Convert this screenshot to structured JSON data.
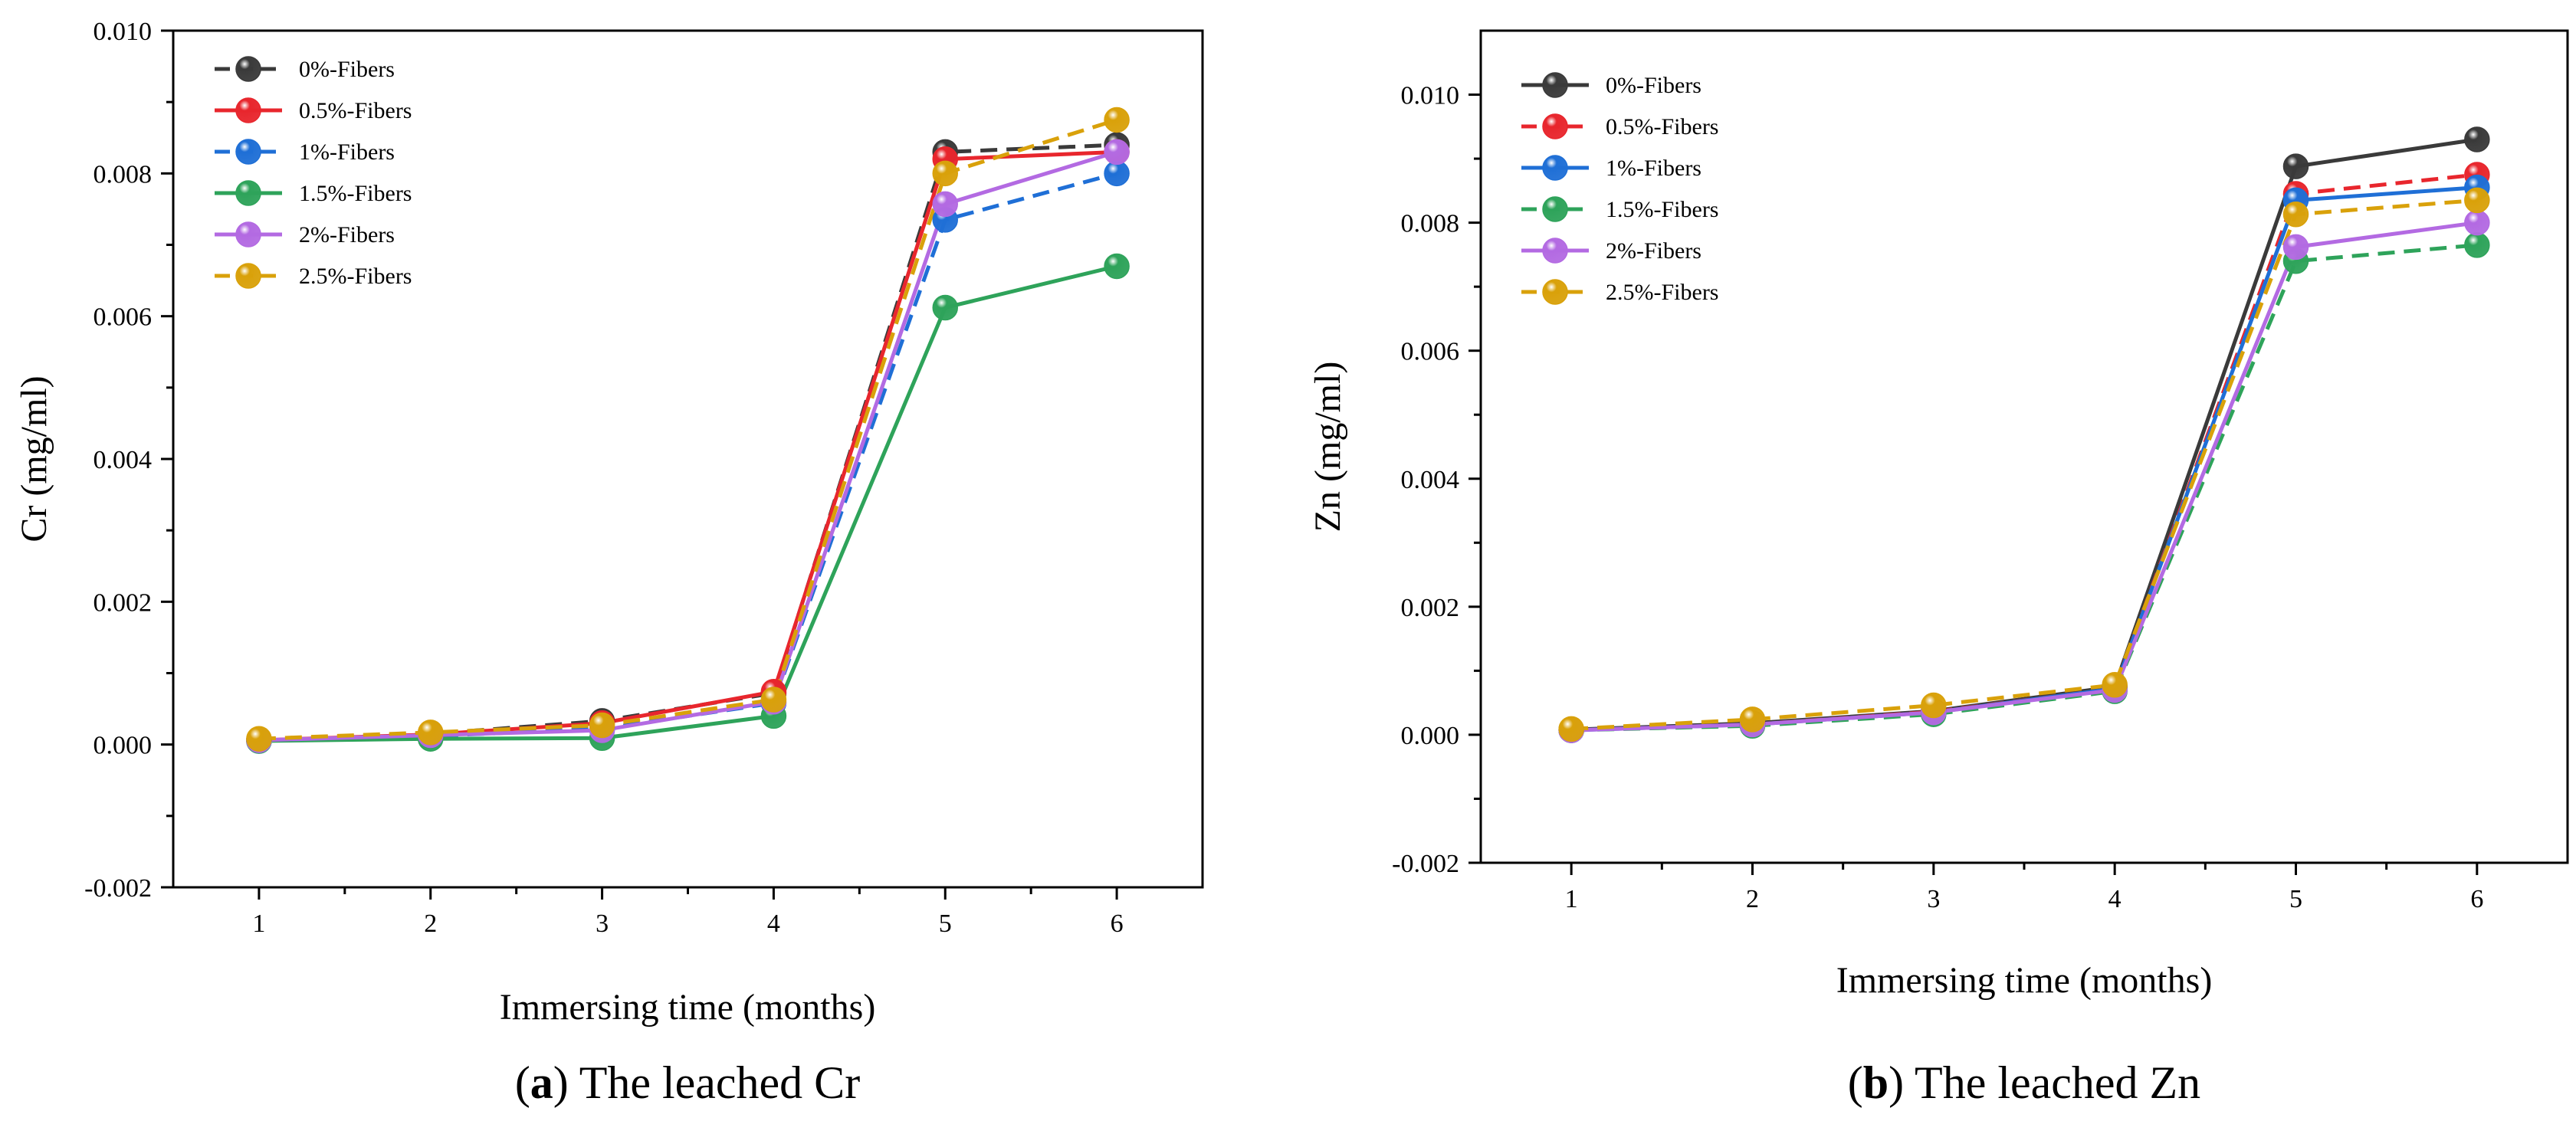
{
  "figure": {
    "panels": [
      {
        "caption_label": "a",
        "caption_text": " The leached Cr"
      },
      {
        "caption_label": "b",
        "caption_text": " The leached Zn"
      }
    ]
  },
  "chart_data": [
    {
      "type": "line",
      "title": "",
      "xlabel": "Immersing time (months)",
      "ylabel": "Cr (mg/ml)",
      "x": [
        1,
        2,
        3,
        4,
        5,
        6
      ],
      "xlim": [
        0.5,
        6.5
      ],
      "ylim": [
        -0.002,
        0.01
      ],
      "xticks": [
        "1",
        "2",
        "3",
        "4",
        "5",
        "6"
      ],
      "yticks": [
        "-0.002",
        "0.000",
        "0.002",
        "0.004",
        "0.006",
        "0.008",
        "0.010"
      ],
      "legend_position": "top-left",
      "series": [
        {
          "name": "0%-Fibers",
          "color": "#3a3a3a",
          "dash": "dashed",
          "values": [
            6e-05,
            0.00015,
            0.00033,
            0.00072,
            0.0083,
            0.0084
          ]
        },
        {
          "name": "0.5%-Fibers",
          "color": "#e8262d",
          "dash": "solid",
          "values": [
            6e-05,
            0.00014,
            0.0003,
            0.00074,
            0.0082,
            0.0083
          ]
        },
        {
          "name": "1%-Fibers",
          "color": "#1f6fd6",
          "dash": "dashed",
          "values": [
            5e-05,
            0.00012,
            0.00022,
            0.00058,
            0.00735,
            0.008
          ]
        },
        {
          "name": "1.5%-Fibers",
          "color": "#2ea35a",
          "dash": "solid",
          "values": [
            5e-05,
            8e-05,
            9e-05,
            0.0004,
            0.00612,
            0.0067
          ]
        },
        {
          "name": "2%-Fibers",
          "color": "#b36ae2",
          "dash": "solid",
          "values": [
            6e-05,
            0.00013,
            0.0002,
            0.0006,
            0.00757,
            0.0083
          ]
        },
        {
          "name": "2.5%-Fibers",
          "color": "#d9a10a",
          "dash": "dashed",
          "values": [
            8e-05,
            0.00017,
            0.00027,
            0.00063,
            0.008,
            0.00875
          ]
        }
      ]
    },
    {
      "type": "line",
      "title": "",
      "xlabel": "Immersing time (months)",
      "ylabel": "Zn (mg/ml)",
      "x": [
        1,
        2,
        3,
        4,
        5,
        6
      ],
      "xlim": [
        0.5,
        6.5
      ],
      "ylim": [
        -0.002,
        0.011
      ],
      "xticks": [
        "1",
        "2",
        "3",
        "4",
        "5",
        "6"
      ],
      "yticks": [
        "-0.002",
        "0.000",
        "0.002",
        "0.004",
        "0.006",
        "0.008",
        "0.010"
      ],
      "legend_position": "top-left",
      "series": [
        {
          "name": "0%-Fibers",
          "color": "#3a3a3a",
          "dash": "solid",
          "values": [
            8e-05,
            0.00018,
            0.00037,
            0.00075,
            0.00888,
            0.0093
          ]
        },
        {
          "name": "0.5%-Fibers",
          "color": "#e8262d",
          "dash": "dashed",
          "values": [
            7e-05,
            0.00016,
            0.00036,
            0.00072,
            0.00845,
            0.00875
          ]
        },
        {
          "name": "1%-Fibers",
          "color": "#1f6fd6",
          "dash": "solid",
          "values": [
            7e-05,
            0.00016,
            0.00035,
            0.00072,
            0.00835,
            0.00855
          ]
        },
        {
          "name": "1.5%-Fibers",
          "color": "#2ea35a",
          "dash": "dashed",
          "values": [
            7e-05,
            0.00014,
            0.00032,
            0.00068,
            0.0074,
            0.00765
          ]
        },
        {
          "name": "2%-Fibers",
          "color": "#b36ae2",
          "dash": "solid",
          "values": [
            7e-05,
            0.00016,
            0.00035,
            0.0007,
            0.00762,
            0.008
          ]
        },
        {
          "name": "2.5%-Fibers",
          "color": "#d9a10a",
          "dash": "dashed",
          "values": [
            9e-05,
            0.00024,
            0.00046,
            0.00078,
            0.00813,
            0.00835
          ]
        }
      ]
    }
  ]
}
